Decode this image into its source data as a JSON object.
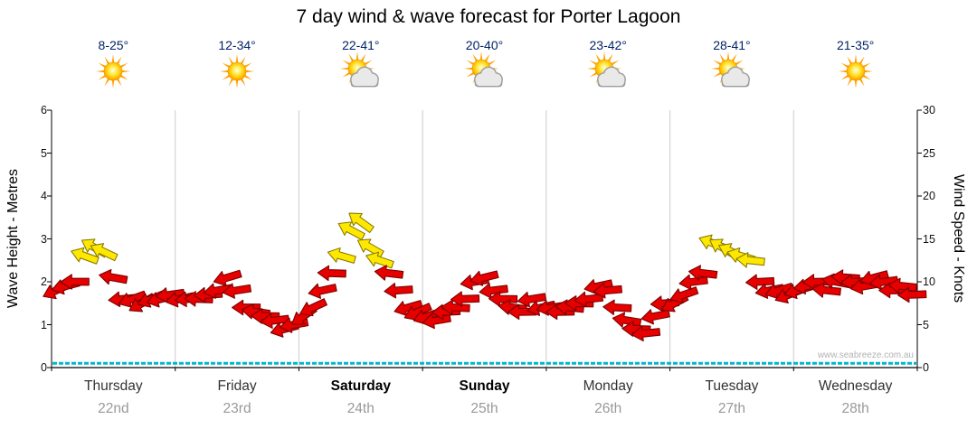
{
  "title": "7 day wind & wave forecast for Porter Lagoon",
  "watermark": "www.seabreeze.com.au",
  "days": [
    {
      "name": "Thursday",
      "date": "22nd",
      "temp": "8-25°",
      "icon": "sunny",
      "bold": false
    },
    {
      "name": "Friday",
      "date": "23rd",
      "temp": "12-34°",
      "icon": "sunny",
      "bold": false
    },
    {
      "name": "Saturday",
      "date": "24th",
      "temp": "22-41°",
      "icon": "partly-cloudy",
      "bold": true
    },
    {
      "name": "Sunday",
      "date": "25th",
      "temp": "20-40°",
      "icon": "partly-cloudy",
      "bold": true
    },
    {
      "name": "Monday",
      "date": "26th",
      "temp": "23-42°",
      "icon": "partly-cloudy",
      "bold": false
    },
    {
      "name": "Tuesday",
      "date": "27th",
      "temp": "28-41°",
      "icon": "partly-cloudy",
      "bold": false
    },
    {
      "name": "Wednesday",
      "date": "28th",
      "temp": "21-35°",
      "icon": "sunny",
      "bold": false
    }
  ],
  "chart_data": {
    "type": "scatter",
    "title": "7 day wind & wave forecast for Porter Lagoon",
    "x_categories": [
      "Thursday 22nd",
      "Friday 23rd",
      "Saturday 24th",
      "Sunday 25th",
      "Monday 26th",
      "Tuesday 27th",
      "Wednesday 28th"
    ],
    "points_per_day": 13,
    "left_axis": {
      "label": "Wave Height - Metres",
      "range": [
        0,
        6
      ],
      "ticks": [
        0,
        1,
        2,
        3,
        4,
        5,
        6
      ]
    },
    "right_axis": {
      "label": "Wind Speed - Knots",
      "range": [
        0,
        30
      ],
      "ticks": [
        0,
        5,
        10,
        15,
        20,
        25,
        30
      ]
    },
    "grid": "vertical-day-lines",
    "legend": "none",
    "wave_height_m": 0.1,
    "yellow_threshold_knots": 12,
    "wind_speed_knots": [
      9,
      9.5,
      10,
      13,
      14,
      13.5,
      10.5,
      8,
      8,
      7.5,
      8,
      8,
      8.5,
      8,
      8,
      8,
      8.5,
      9,
      10.5,
      9,
      7,
      6.5,
      6,
      5.5,
      4.5,
      5,
      6,
      7,
      9,
      11,
      13,
      16,
      17,
      14,
      12.5,
      11,
      9,
      7,
      6.5,
      6,
      5.5,
      6.5,
      7,
      8,
      10,
      10.5,
      9,
      8,
      7,
      6.5,
      8,
      7,
      7,
      6.5,
      7,
      7.5,
      8,
      9.5,
      9,
      7,
      5.5,
      4.5,
      4,
      6,
      7.5,
      7.5,
      8.5,
      10,
      11,
      14.5,
      14,
      13.5,
      13,
      12.5,
      10,
      9,
      9,
      8.5,
      9,
      9.5,
      10,
      9,
      10,
      10.5,
      10,
      9.5,
      10.5,
      10,
      9,
      9.5,
      8.5
    ],
    "wind_direction_deg": [
      155,
      165,
      180,
      200,
      210,
      205,
      190,
      175,
      160,
      150,
      158,
      166,
      172,
      168,
      175,
      182,
      176,
      170,
      163,
      171,
      180,
      188,
      181,
      173,
      165,
      170,
      145,
      155,
      168,
      182,
      196,
      208,
      216,
      210,
      199,
      187,
      176,
      164,
      156,
      162,
      170,
      177,
      183,
      178,
      171,
      166,
      173,
      181,
      187,
      179,
      171,
      167,
      172,
      179,
      186,
      181,
      174,
      168,
      175,
      183,
      189,
      182,
      174,
      169,
      176,
      152,
      161,
      173,
      187,
      201,
      211,
      206,
      196,
      186,
      177,
      169,
      163,
      158,
      163,
      171,
      179,
      186,
      191,
      184,
      176,
      170,
      165,
      172,
      180,
      186,
      178
    ]
  },
  "colors": {
    "arrow_red": "#e60000",
    "arrow_red_outline": "#7d0000",
    "arrow_yellow": "#ffe800",
    "arrow_yellow_outline": "#8a7d00",
    "wave_line": "#00b8cc",
    "grid": "#cccccc",
    "axis": "#000000",
    "temp_text": "#002366",
    "date_text": "#999999",
    "day_text": "#333333",
    "weekend_day_text": "#000000",
    "watermark_text": "#b3b3b3"
  }
}
